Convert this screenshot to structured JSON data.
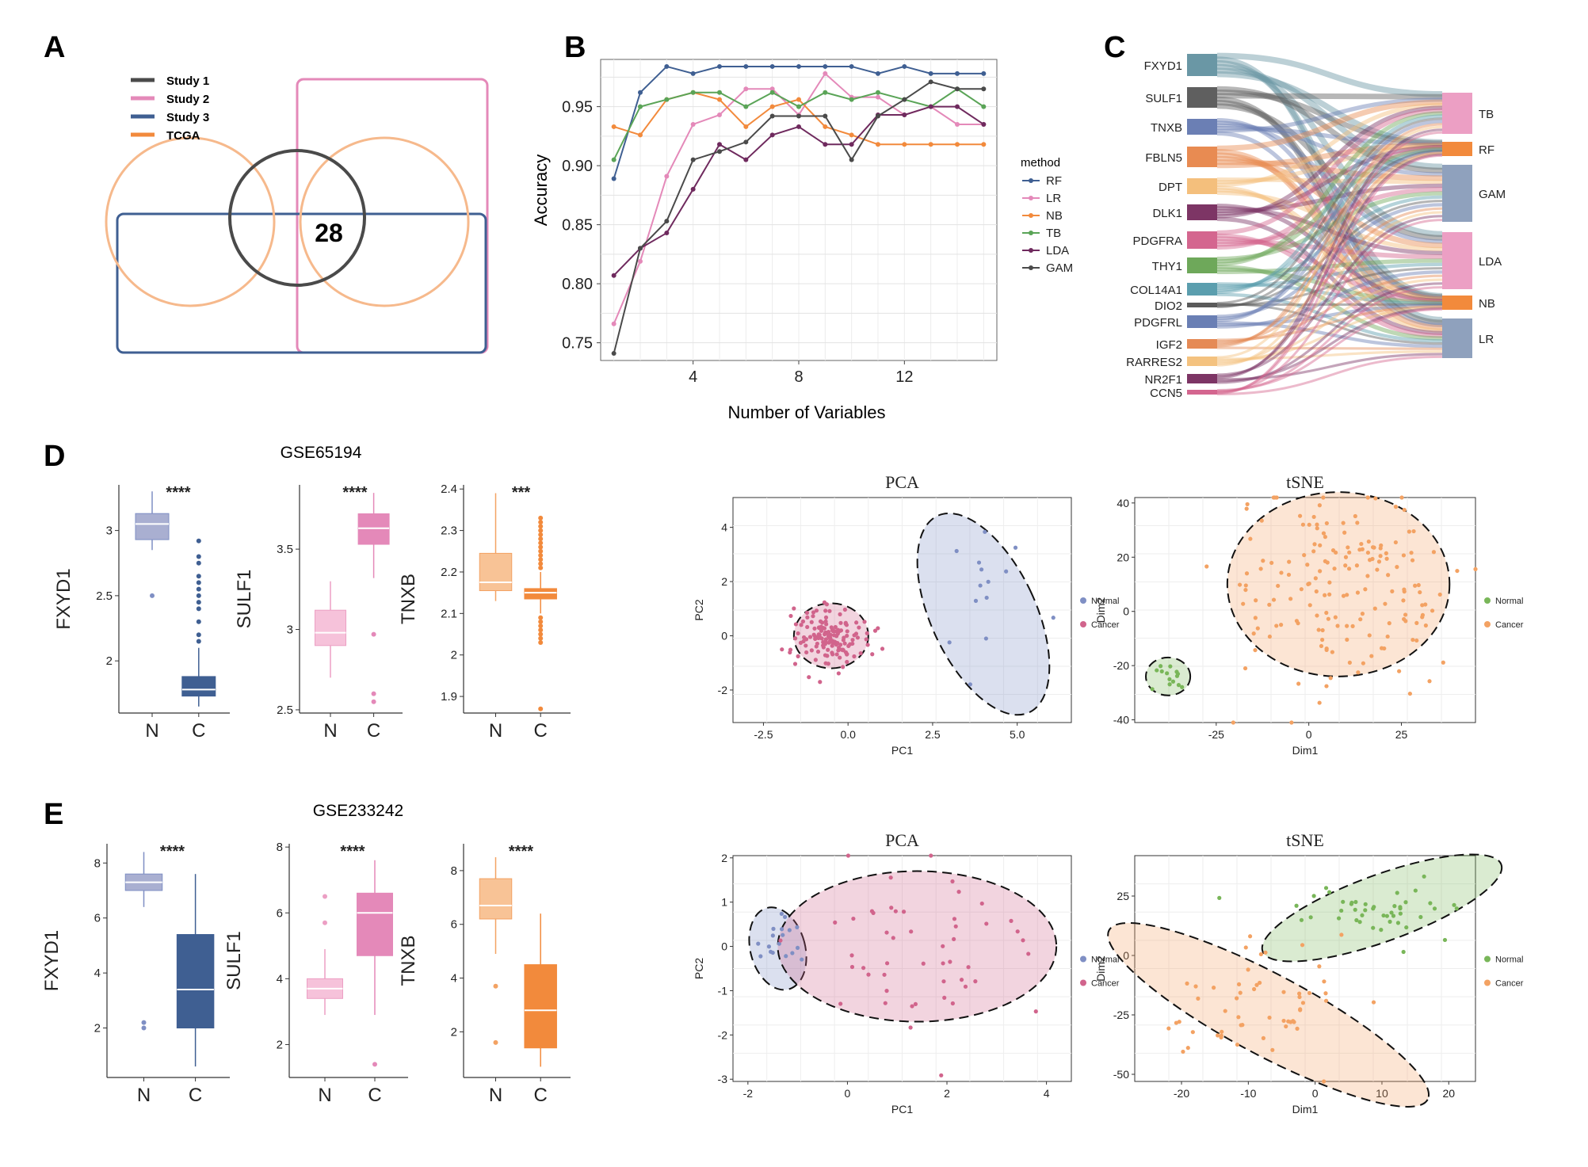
{
  "panels": {
    "A": "A",
    "B": "B",
    "C": "C",
    "D": "D",
    "E": "E"
  },
  "colors": {
    "study1": "#4a4a4a",
    "study2": "#e489b9",
    "study3": "#3f5f92",
    "tcga": "#f28a3c",
    "rf": "#3f5f92",
    "lr": "#e489b9",
    "nb": "#f28a3c",
    "tb": "#5aa457",
    "lda": "#6f2a5e",
    "gam": "#4a4a4a",
    "normal_blue": "#7f8fc4",
    "cancer_pink": "#d1648c",
    "normal_green": "#79b659",
    "cancer_orange": "#f3a263"
  },
  "venn": {
    "legend": [
      "Study 1",
      "Study 2",
      "Study 3",
      "TCGA"
    ],
    "center_value": "28"
  },
  "accuracy": {
    "chart_data": {
      "type": "line",
      "title": "",
      "xlabel": "Number of Variables",
      "ylabel": "Accuracy",
      "xlim": [
        0.5,
        15.5
      ],
      "ylim": [
        0.735,
        0.99
      ],
      "xticks": [
        4,
        8,
        12
      ],
      "yticks": [
        0.75,
        0.8,
        0.85,
        0.9,
        0.95
      ],
      "ytick_labels": [
        "0.75",
        "0.80",
        "0.85",
        "0.90",
        "0.95"
      ],
      "x": [
        1,
        2,
        3,
        4,
        5,
        6,
        7,
        8,
        9,
        10,
        11,
        12,
        13,
        14,
        15
      ],
      "legend_title": "method",
      "series": [
        {
          "name": "RF",
          "values": [
            0.889,
            0.962,
            0.984,
            0.978,
            0.984,
            0.984,
            0.984,
            0.984,
            0.984,
            0.984,
            0.978,
            0.984,
            0.978,
            0.978,
            0.978
          ]
        },
        {
          "name": "LR",
          "values": [
            0.766,
            0.819,
            0.891,
            0.935,
            0.943,
            0.965,
            0.965,
            0.943,
            0.978,
            0.958,
            0.958,
            0.943,
            0.95,
            0.935,
            0.935
          ]
        },
        {
          "name": "NB",
          "values": [
            0.933,
            0.926,
            0.956,
            0.962,
            0.956,
            0.933,
            0.95,
            0.956,
            0.933,
            0.926,
            0.918,
            0.918,
            0.918,
            0.918,
            0.918
          ]
        },
        {
          "name": "TB",
          "values": [
            0.905,
            0.95,
            0.956,
            0.962,
            0.962,
            0.95,
            0.962,
            0.95,
            0.962,
            0.956,
            0.962,
            0.956,
            0.95,
            0.965,
            0.95
          ]
        },
        {
          "name": "LDA",
          "values": [
            0.807,
            0.83,
            0.843,
            0.88,
            0.918,
            0.905,
            0.926,
            0.933,
            0.918,
            0.918,
            0.943,
            0.943,
            0.95,
            0.95,
            0.935
          ]
        },
        {
          "name": "GAM",
          "values": [
            0.741,
            0.83,
            0.853,
            0.905,
            0.912,
            0.92,
            0.942,
            0.942,
            0.942,
            0.905,
            0.942,
            0.956,
            0.971,
            0.965,
            0.965
          ]
        }
      ]
    }
  },
  "sankey": {
    "chart_data": {
      "type": "sankey",
      "genes": [
        "FXYD1",
        "SULF1",
        "TNXB",
        "FBLN5",
        "DPT",
        "DLK1",
        "PDGFRA",
        "THY1",
        "COL14A1",
        "DIO2",
        "PDGFRL",
        "IGF2",
        "RARRES2",
        "NR2F1",
        "CCN5"
      ],
      "gene_weights": [
        6,
        5,
        4,
        5,
        4,
        4,
        4,
        4,
        3,
        1,
        3,
        2,
        2,
        2,
        1
      ],
      "methods": [
        "TB",
        "RF",
        "GAM",
        "LDA",
        "NB",
        "LR"
      ],
      "method_weights": [
        10,
        3,
        15,
        14,
        3,
        10
      ]
    }
  },
  "boxplots": {
    "D": {
      "title": "GSE65194",
      "plots": [
        {
          "gene": "FXYD1",
          "sig": "****",
          "categories": [
            "N",
            "C"
          ],
          "yticks": [
            2.0,
            2.5,
            3.0
          ],
          "ylim": [
            1.6,
            3.35
          ],
          "normal": {
            "min": 2.85,
            "q1": 2.93,
            "median": 3.05,
            "q3": 3.13,
            "max": 3.3,
            "outliers": [
              2.5
            ]
          },
          "cancer": {
            "min": 1.65,
            "q1": 1.73,
            "median": 1.78,
            "q3": 1.88,
            "max": 2.1,
            "outliers": [
              2.15,
              2.2,
              2.3,
              2.4,
              2.45,
              2.5,
              2.55,
              2.6,
              2.65,
              2.75,
              2.8,
              2.92
            ]
          }
        },
        {
          "gene": "SULF1",
          "sig": "****",
          "categories": [
            "N",
            "C"
          ],
          "yticks": [
            2.5,
            3.0,
            3.5
          ],
          "ylim": [
            2.48,
            3.9
          ],
          "normal": {
            "min": 2.7,
            "q1": 2.9,
            "median": 2.98,
            "q3": 3.12,
            "max": 3.3,
            "outliers": []
          },
          "cancer": {
            "min": 3.32,
            "q1": 3.53,
            "median": 3.63,
            "q3": 3.72,
            "max": 3.85,
            "outliers": [
              2.97,
              2.6,
              2.55
            ]
          }
        },
        {
          "gene": "TNXB",
          "sig": "***",
          "categories": [
            "N",
            "C"
          ],
          "yticks": [
            1.9,
            2.0,
            2.1,
            2.2,
            2.3,
            2.4
          ],
          "ylim": [
            1.86,
            2.41
          ],
          "normal": {
            "min": 2.13,
            "q1": 2.155,
            "median": 2.175,
            "q3": 2.245,
            "max": 2.39,
            "outliers": []
          },
          "cancer": {
            "min": 2.1,
            "q1": 2.135,
            "median": 2.15,
            "q3": 2.16,
            "max": 2.2,
            "outliers": [
              2.21,
              2.22,
              2.23,
              2.24,
              2.25,
              2.26,
              2.27,
              2.28,
              2.29,
              2.3,
              2.31,
              2.32,
              2.33,
              2.09,
              2.08,
              2.07,
              2.06,
              2.05,
              2.04,
              2.03,
              1.87
            ]
          }
        }
      ]
    },
    "E": {
      "title": "GSE233242",
      "plots": [
        {
          "gene": "FXYD1",
          "sig": "****",
          "categories": [
            "N",
            "C"
          ],
          "yticks": [
            2,
            4,
            6,
            8
          ],
          "ylim": [
            0.2,
            8.7
          ],
          "normal": {
            "min": 6.4,
            "q1": 7.0,
            "median": 7.3,
            "q3": 7.6,
            "max": 8.4,
            "outliers": [
              2.0,
              2.2
            ]
          },
          "cancer": {
            "min": 0.6,
            "q1": 2.0,
            "median": 3.4,
            "q3": 5.4,
            "max": 7.6,
            "outliers": []
          }
        },
        {
          "gene": "SULF1",
          "sig": "****",
          "categories": [
            "N",
            "C"
          ],
          "yticks": [
            2,
            4,
            6,
            8
          ],
          "ylim": [
            1.0,
            8.1
          ],
          "normal": {
            "min": 2.9,
            "q1": 3.4,
            "median": 3.7,
            "q3": 4.0,
            "max": 4.9,
            "outliers": [
              5.7,
              6.5
            ]
          },
          "cancer": {
            "min": 2.9,
            "q1": 4.7,
            "median": 6.0,
            "q3": 6.6,
            "max": 7.6,
            "outliers": [
              1.4
            ]
          }
        },
        {
          "gene": "TNXB",
          "sig": "****",
          "categories": [
            "N",
            "C"
          ],
          "yticks": [
            2,
            4,
            6,
            8
          ],
          "ylim": [
            0.3,
            9.0
          ],
          "normal": {
            "min": 4.9,
            "q1": 6.2,
            "median": 6.7,
            "q3": 7.7,
            "max": 8.5,
            "outliers": [
              3.7,
              1.6
            ]
          },
          "cancer": {
            "min": 0.7,
            "q1": 1.4,
            "median": 2.8,
            "q3": 4.5,
            "max": 6.4,
            "outliers": []
          }
        }
      ]
    }
  },
  "scatters": {
    "D_pca": {
      "title": "PCA",
      "xlabel": "PC1",
      "ylabel": "PC2",
      "xticks": [
        -2.5,
        0.0,
        2.5,
        5.0
      ],
      "xtick_labels": [
        "-2.5",
        "0.0",
        "2.5",
        "5.0"
      ],
      "yticks": [
        -2,
        0,
        2,
        4
      ],
      "xlim": [
        -3.4,
        6.6
      ],
      "ylim": [
        -3.2,
        5.1
      ],
      "legend": [
        "Normal",
        "Cancer"
      ],
      "group_a": "normal_blue",
      "group_b": "cancer_pink"
    },
    "D_tsne": {
      "title": "tSNE",
      "xlabel": "Dim1",
      "ylabel": "Dim2",
      "xticks": [
        -25,
        0,
        25
      ],
      "yticks": [
        -40,
        -20,
        0,
        20,
        40
      ],
      "xlim": [
        -47,
        45
      ],
      "ylim": [
        -41,
        42
      ],
      "legend": [
        "Normal",
        "Cancer"
      ],
      "group_a": "normal_green",
      "group_b": "cancer_orange"
    },
    "E_pca": {
      "title": "PCA",
      "xlabel": "PC1",
      "ylabel": "PC2",
      "xticks": [
        -2,
        0,
        2,
        4
      ],
      "yticks": [
        -3,
        -2,
        -1,
        0,
        1,
        2
      ],
      "xlim": [
        -2.3,
        4.5
      ],
      "ylim": [
        -3.05,
        2.05
      ],
      "legend": [
        "Normal",
        "Cancer"
      ],
      "group_a": "normal_blue",
      "group_b": "cancer_pink"
    },
    "E_tsne": {
      "title": "tSNE",
      "xlabel": "Dim1",
      "ylabel": "Dim2",
      "xticks": [
        -20,
        -10,
        0,
        10,
        20
      ],
      "yticks": [
        -50,
        -25,
        0,
        25
      ],
      "xlim": [
        -27,
        24
      ],
      "ylim": [
        -53,
        42
      ],
      "legend": [
        "Normal",
        "Cancer"
      ],
      "group_a": "normal_green",
      "group_b": "cancer_orange"
    }
  }
}
